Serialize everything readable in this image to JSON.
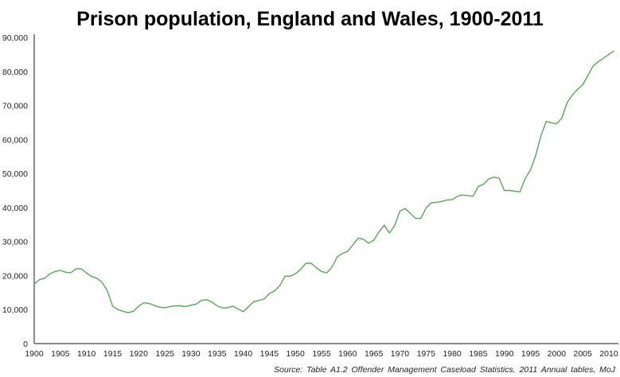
{
  "chart_data": {
    "type": "line",
    "title": "Prison population, England and Wales, 1900-2011",
    "source": "Source: Table A1.2 Offender Management Caseload Statistics, 2011 Annual tables, MoJ",
    "xlabel": "",
    "ylabel": "",
    "xlim": [
      1900,
      2011
    ],
    "ylim": [
      0,
      90000
    ],
    "x_ticks": [
      "1900",
      "1905",
      "1910",
      "1915",
      "1920",
      "1925",
      "1930",
      "1935",
      "1940",
      "1945",
      "1950",
      "1955",
      "1960",
      "1965",
      "1970",
      "1975",
      "1980",
      "1985",
      "1990",
      "1995",
      "2000",
      "2005",
      "2010"
    ],
    "y_ticks": [
      "0",
      "10,000",
      "20,000",
      "30,000",
      "40,000",
      "50,000",
      "60,000",
      "70,000",
      "80,000",
      "90,000"
    ],
    "grid": false,
    "line_color": "#5aa55a",
    "x_start": 1900,
    "values": [
      17500,
      18800,
      19200,
      20500,
      21200,
      21500,
      21000,
      20800,
      22000,
      22000,
      20800,
      19700,
      19200,
      18000,
      15500,
      11000,
      10000,
      9500,
      9100,
      9500,
      11000,
      12000,
      11800,
      11200,
      10700,
      10500,
      10900,
      11100,
      11100,
      10900,
      11300,
      11600,
      12700,
      12900,
      12200,
      11100,
      10500,
      10500,
      11000,
      10200,
      9400,
      10800,
      12300,
      12700,
      13100,
      14700,
      15500,
      17000,
      19800,
      19800,
      20500,
      21800,
      23600,
      23600,
      22300,
      21200,
      20800,
      22500,
      25500,
      26500,
      27100,
      29000,
      31000,
      30700,
      29500,
      30400,
      32800,
      34800,
      32500,
      34700,
      39000,
      39700,
      38300,
      36800,
      36800,
      39800,
      41400,
      41500,
      41800,
      42200,
      42300,
      43300,
      43700,
      43500,
      43300,
      46200,
      46800,
      48400,
      48900,
      48600,
      45000,
      45000,
      44800,
      44600,
      48600,
      51000,
      55300,
      61100,
      65300,
      64900,
      64600,
      66300,
      70800,
      73000,
      74700,
      76100,
      78800,
      81600,
      82900,
      83900,
      85000,
      86000
    ]
  }
}
